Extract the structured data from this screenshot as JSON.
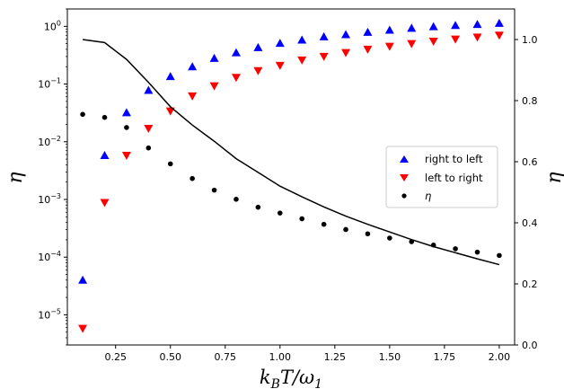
{
  "chart_data": {
    "type": "scatter",
    "x": [
      0.1,
      0.2,
      0.3,
      0.4,
      0.5,
      0.6,
      0.7,
      0.8,
      0.9,
      1.0,
      1.1,
      1.2,
      1.3,
      1.4,
      1.5,
      1.6,
      1.7,
      1.8,
      1.9,
      2.0
    ],
    "series": [
      {
        "name": "right to left",
        "axis": "left",
        "scale": "log",
        "marker": "triangle-up",
        "color": "#0000ff",
        "values": [
          4e-05,
          0.0058,
          0.032,
          0.078,
          0.135,
          0.2,
          0.28,
          0.35,
          0.43,
          0.51,
          0.58,
          0.66,
          0.72,
          0.79,
          0.86,
          0.93,
          0.99,
          1.04,
          1.08,
          1.13
        ]
      },
      {
        "name": "left to right",
        "axis": "left",
        "scale": "log",
        "marker": "triangle-down",
        "color": "#ff0000",
        "values": [
          5.8e-06,
          0.00088,
          0.0058,
          0.017,
          0.034,
          0.062,
          0.093,
          0.13,
          0.17,
          0.21,
          0.26,
          0.3,
          0.35,
          0.4,
          0.45,
          0.5,
          0.55,
          0.6,
          0.65,
          0.7
        ]
      },
      {
        "name": "η",
        "axis": "right",
        "scale": "linear",
        "marker": "circle",
        "color": "#000000",
        "values": [
          0.755,
          0.745,
          0.712,
          0.645,
          0.593,
          0.545,
          0.507,
          0.477,
          0.451,
          0.432,
          0.413,
          0.395,
          0.378,
          0.364,
          0.35,
          0.338,
          0.327,
          0.315,
          0.304,
          0.293
        ]
      },
      {
        "axis": "right",
        "scale": "linear",
        "type": "line",
        "color": "#000000",
        "values": [
          1.0,
          0.99,
          0.935,
          0.86,
          0.78,
          0.72,
          0.667,
          0.61,
          0.565,
          0.52,
          0.485,
          0.452,
          0.422,
          0.395,
          0.37,
          0.345,
          0.322,
          0.302,
          0.282,
          0.263
        ]
      }
    ],
    "xlabel": "k_B T/ω_1",
    "ylabel_left": "η",
    "ylabel_right": "η",
    "xlim": [
      0.03,
      2.07
    ],
    "ylim_left": [
      3e-06,
      2.0
    ],
    "ylim_right": [
      0.0,
      1.1
    ],
    "x_ticks": [
      "0.25",
      "0.50",
      "0.75",
      "1.00",
      "1.25",
      "1.50",
      "1.75",
      "2.00"
    ],
    "y_left_ticks": [
      -5,
      -4,
      -3,
      -2,
      -1,
      0
    ],
    "y_right_ticks": [
      "0.0",
      "0.2",
      "0.4",
      "0.6",
      "0.8",
      "1.0"
    ],
    "legend_position": "center-right",
    "grid": false
  }
}
